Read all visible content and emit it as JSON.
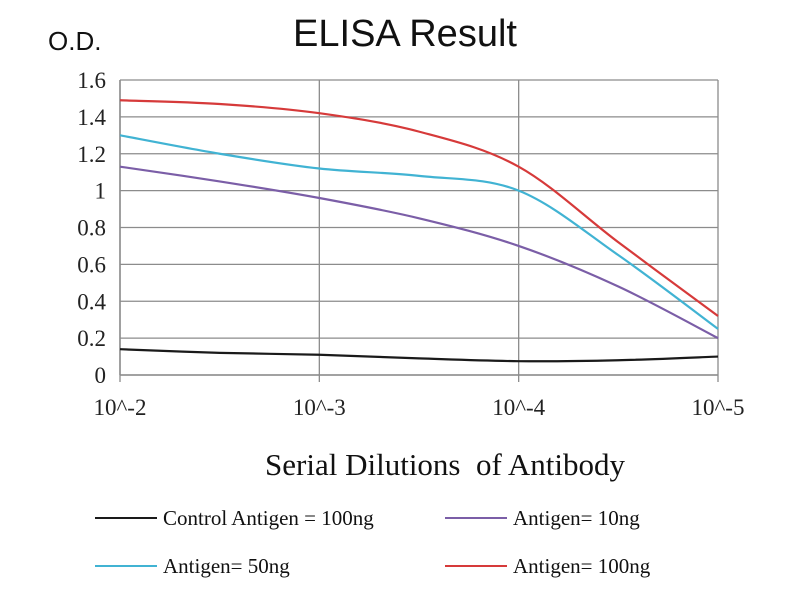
{
  "chart_data": {
    "type": "line",
    "title": "ELISA Result",
    "ylabel": "O.D.",
    "xlabel": "Serial Dilutions  of Antibody",
    "x_tick_labels": [
      "10^-2",
      "10^-3",
      "10^-4",
      "10^-5"
    ],
    "y_ticks": [
      0,
      0.2,
      0.4,
      0.6,
      0.8,
      1,
      1.2,
      1.4,
      1.6
    ],
    "y_tick_labels": [
      "0",
      "0.2",
      "0.4",
      "0.6",
      "0.8",
      "1",
      "1.2",
      "1.4",
      "1.6"
    ],
    "ylim": [
      0,
      1.6
    ],
    "x_scale": "log (dilution)",
    "grid": true,
    "legend_position": "bottom",
    "series": [
      {
        "name": "Control Antigen = 100ng",
        "color": "#1a1a1a",
        "points": [
          [
            0,
            0.14
          ],
          [
            0.5,
            0.12
          ],
          [
            1,
            0.11
          ],
          [
            1.5,
            0.09
          ],
          [
            2,
            0.075
          ],
          [
            2.5,
            0.08
          ],
          [
            3,
            0.1
          ]
        ]
      },
      {
        "name": "Antigen= 10ng",
        "color": "#7b5ea7",
        "points": [
          [
            0,
            1.13
          ],
          [
            0.5,
            1.05
          ],
          [
            1,
            0.96
          ],
          [
            1.5,
            0.85
          ],
          [
            2,
            0.7
          ],
          [
            2.5,
            0.48
          ],
          [
            3,
            0.2
          ]
        ]
      },
      {
        "name": "Antigen= 50ng",
        "color": "#41b3d3",
        "points": [
          [
            0,
            1.3
          ],
          [
            0.5,
            1.2
          ],
          [
            1,
            1.12
          ],
          [
            1.5,
            1.08
          ],
          [
            2,
            1.0
          ],
          [
            2.5,
            0.65
          ],
          [
            3,
            0.25
          ]
        ]
      },
      {
        "name": "Antigen= 100ng",
        "color": "#d63a3a",
        "points": [
          [
            0,
            1.49
          ],
          [
            0.5,
            1.47
          ],
          [
            1,
            1.42
          ],
          [
            1.5,
            1.32
          ],
          [
            2,
            1.13
          ],
          [
            2.5,
            0.72
          ],
          [
            3,
            0.32
          ]
        ]
      }
    ]
  }
}
